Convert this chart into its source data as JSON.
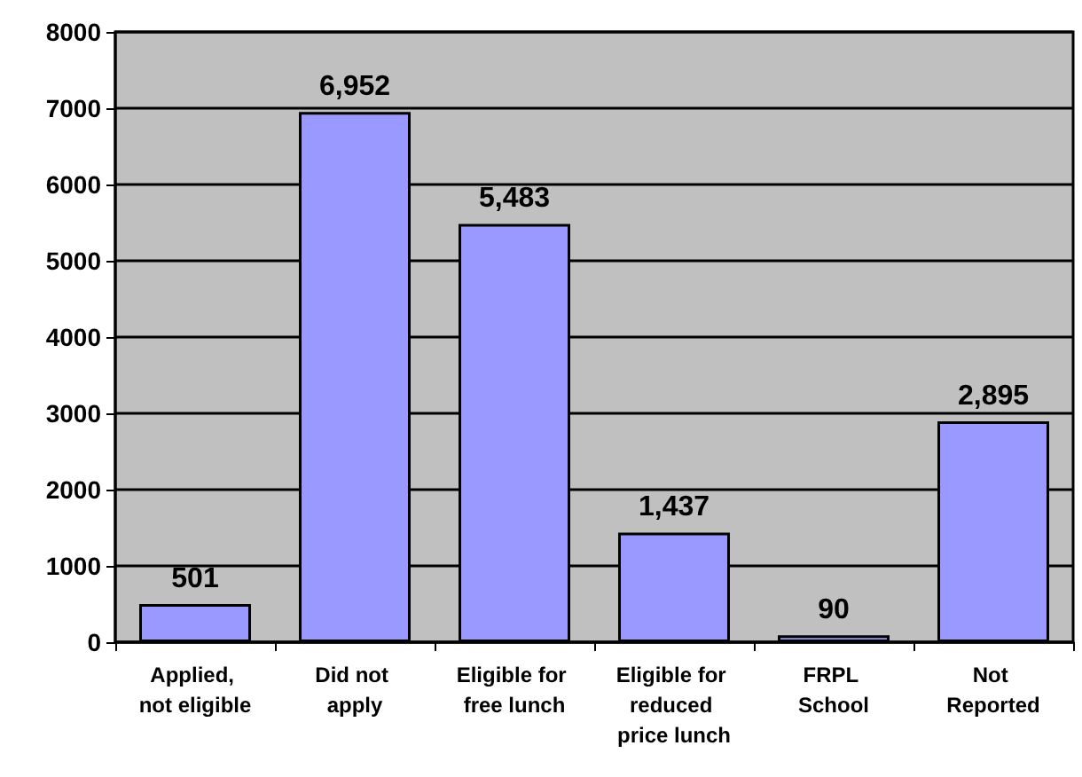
{
  "chart_data": {
    "type": "bar",
    "categories": [
      "Applied, not eligible",
      "Did not apply",
      "Eligible for free lunch",
      "Eligible for reduced price lunch",
      "FRPL School",
      "Not Reported"
    ],
    "values": [
      501,
      6952,
      5483,
      1437,
      90,
      2895
    ],
    "value_labels": [
      "501",
      "6,952",
      "5,483",
      "1,437",
      "90",
      "2,895"
    ],
    "color": "#9999ff",
    "ylim": [
      0,
      8000
    ],
    "yticks": [
      0,
      1000,
      2000,
      3000,
      4000,
      5000,
      6000,
      7000,
      8000
    ],
    "grid": "y"
  }
}
